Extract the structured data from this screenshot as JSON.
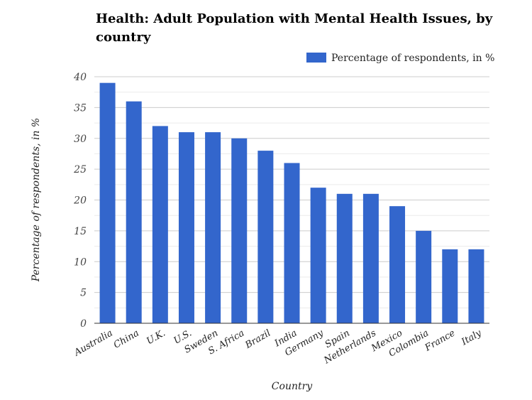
{
  "chart_data": {
    "type": "bar",
    "title": "Health: Adult Population with Mental Health Issues, by country",
    "xlabel": "Country",
    "ylabel": "Percentage of respondents, in %",
    "categories": [
      "Australia",
      "China",
      "U.K.",
      "U.S.",
      "Sweden",
      "S. Africa",
      "Brazil",
      "India",
      "Germany",
      "Spain",
      "Netherlands",
      "Mexico",
      "Colombia",
      "France",
      "Italy"
    ],
    "series": [
      {
        "name": "Percentage of respondents, in %",
        "values": [
          39,
          36,
          32,
          31,
          31,
          30,
          28,
          26,
          22,
          21,
          21,
          19,
          15,
          12,
          12
        ],
        "color": "#3366cc"
      }
    ],
    "ylim": [
      0,
      40
    ],
    "yticks": [
      0,
      5,
      10,
      15,
      20,
      25,
      30,
      35,
      40
    ],
    "grid": true,
    "minor_grid": true,
    "legend_position": "top-right"
  }
}
